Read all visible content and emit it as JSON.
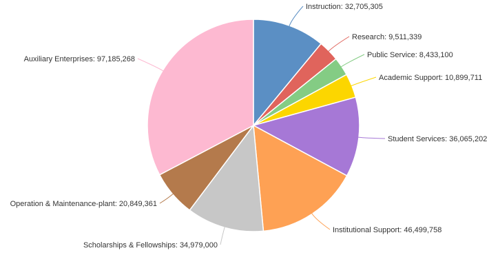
{
  "chart_data": {
    "type": "pie",
    "title": "",
    "slices": [
      {
        "label": "Instruction",
        "value": 32705305,
        "display_value": "32,705,305",
        "color": "#5b8fc4"
      },
      {
        "label": "Research",
        "value": 9511339,
        "display_value": "9,511,339",
        "color": "#e0645c"
      },
      {
        "label": "Public Service",
        "value": 8433100,
        "display_value": "8,433,100",
        "color": "#84cc84"
      },
      {
        "label": "Academic Support",
        "value": 10899711,
        "display_value": "10,899,711",
        "color": "#fcd600"
      },
      {
        "label": "Student Services",
        "value": 36065202,
        "display_value": "36,065,202",
        "color": "#a678d6"
      },
      {
        "label": "Institutional Support",
        "value": 46499758,
        "display_value": "46,499,758",
        "color": "#fea154"
      },
      {
        "label": "Scholarships & Fellowships",
        "value": 34979000,
        "display_value": "34,979,000",
        "color": "#c7c7c7"
      },
      {
        "label": "Operation & Maintenance-plant",
        "value": 20849361,
        "display_value": "20,849,361",
        "color": "#b47a4c"
      },
      {
        "label": "Auxiliary Enterprises",
        "value": 97185268,
        "display_value": "97,185,268",
        "color": "#fdb9d1"
      }
    ],
    "start_angle": "12 o'clock",
    "direction": "clockwise",
    "legend": "none",
    "data_labels": "outside with leader lines"
  }
}
